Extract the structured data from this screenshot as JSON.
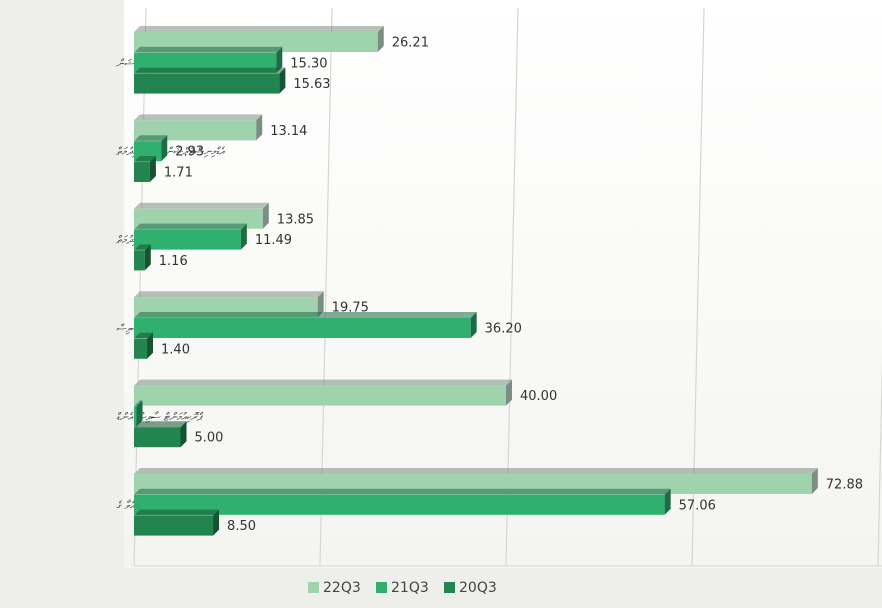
{
  "chart_data": {
    "type": "bar",
    "orientation": "horizontal",
    "categories": [
      "އޮޕަރޭޝަން",
      "އެޑްމިނިސްޓްރޭޝަން ސަޕޯޓް ޚިދުމަތް",
      "ފިނޭންސް ޚިދުމަތް",
      "ހިއުމަން ރިސޯސަސް ސާވިސް",
      "ޕްރޮކިއުމަންޓް ސާވިސް އެންޑް",
      "ފުރަޔާއުޅުއްވާ ގެ"
    ],
    "series": [
      {
        "name": "22Q3",
        "values": [
          26.21,
          13.14,
          13.85,
          19.75,
          40.0,
          72.88
        ],
        "labels": [
          "26.21",
          "13.14",
          "13.85",
          "19.75",
          "40.00",
          "72.88"
        ]
      },
      {
        "name": "21Q3",
        "values": [
          15.3,
          2.93,
          11.49,
          36.2,
          0,
          57.06
        ],
        "labels": [
          "15.30",
          "2.93",
          "11.49",
          "36.20",
          "-",
          "57.06"
        ]
      },
      {
        "name": "20Q3",
        "values": [
          15.63,
          1.71,
          1.16,
          1.4,
          5.0,
          8.5
        ],
        "labels": [
          "15.63",
          "1.71",
          "1.16",
          "1.40",
          "5.00",
          "8.50"
        ]
      }
    ],
    "xlim": [
      0,
      80
    ],
    "grid": true,
    "legend_position": "bottom",
    "colors": [
      "#9fd3ae",
      "#2fb06f",
      "#22854f"
    ],
    "side_colors": [
      "#7a8f82",
      "#1a6e44",
      "#14542f"
    ]
  }
}
